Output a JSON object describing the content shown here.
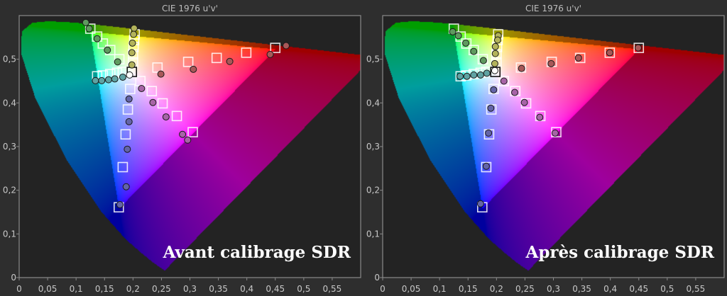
{
  "chart_data": [
    {
      "type": "scatter",
      "title": "CIE 1976 u'v'",
      "caption": "Avant calibrage SDR",
      "xlim": [
        0,
        0.6
      ],
      "ylim": [
        0,
        0.6
      ],
      "xticks": [
        "0",
        "0,05",
        "0,1",
        "0,15",
        "0,2",
        "0,25",
        "0,3",
        "0,35",
        "0,4",
        "0,45",
        "0,5",
        "0,55"
      ],
      "xtick_values": [
        0,
        0.05,
        0.1,
        0.15,
        0.2,
        0.25,
        0.3,
        0.35,
        0.4,
        0.45,
        0.5,
        0.55
      ],
      "yticks": [
        "0",
        "0,1",
        "0,2",
        "0,3",
        "0,4",
        "0,5"
      ],
      "ytick_values": [
        0,
        0.1,
        0.2,
        0.3,
        0.4,
        0.5
      ],
      "targets": {
        "green": [
          [
            0.125,
            0.57
          ],
          [
            0.137,
            0.552
          ],
          [
            0.147,
            0.536
          ],
          [
            0.16,
            0.521
          ],
          [
            0.176,
            0.5
          ]
        ],
        "yellow": [
          [
            0.203,
            0.557
          ],
          [
            0.202,
            0.544
          ],
          [
            0.201,
            0.528
          ],
          [
            0.2,
            0.511
          ],
          [
            0.2,
            0.493
          ]
        ],
        "cyan": [
          [
            0.137,
            0.461
          ],
          [
            0.147,
            0.463
          ],
          [
            0.16,
            0.466
          ],
          [
            0.172,
            0.469
          ],
          [
            0.182,
            0.471
          ]
        ],
        "red": [
          [
            0.45,
            0.526
          ],
          [
            0.399,
            0.515
          ],
          [
            0.347,
            0.503
          ],
          [
            0.297,
            0.494
          ],
          [
            0.243,
            0.481
          ]
        ],
        "magenta": [
          [
            0.305,
            0.333
          ],
          [
            0.277,
            0.37
          ],
          [
            0.252,
            0.399
          ],
          [
            0.233,
            0.427
          ],
          [
            0.213,
            0.45
          ]
        ],
        "blue": [
          [
            0.175,
            0.161
          ],
          [
            0.182,
            0.253
          ],
          [
            0.187,
            0.328
          ],
          [
            0.191,
            0.385
          ],
          [
            0.195,
            0.432
          ]
        ],
        "white": [
          [
            0.198,
            0.471
          ]
        ]
      },
      "measured": {
        "green": [
          [
            0.117,
            0.584
          ],
          [
            0.123,
            0.57
          ],
          [
            0.137,
            0.547
          ],
          [
            0.155,
            0.521
          ],
          [
            0.173,
            0.494
          ]
        ],
        "yellow": [
          [
            0.202,
            0.571
          ],
          [
            0.201,
            0.557
          ],
          [
            0.199,
            0.537
          ],
          [
            0.198,
            0.515
          ],
          [
            0.198,
            0.487
          ]
        ],
        "cyan": [
          [
            0.134,
            0.451
          ],
          [
            0.145,
            0.451
          ],
          [
            0.157,
            0.453
          ],
          [
            0.168,
            0.455
          ],
          [
            0.182,
            0.459
          ]
        ],
        "red": [
          [
            0.469,
            0.531
          ],
          [
            0.441,
            0.511
          ],
          [
            0.37,
            0.495
          ],
          [
            0.306,
            0.477
          ],
          [
            0.249,
            0.466
          ]
        ],
        "magenta": [
          [
            0.296,
            0.315
          ],
          [
            0.287,
            0.328
          ],
          [
            0.258,
            0.368
          ],
          [
            0.235,
            0.401
          ],
          [
            0.215,
            0.433
          ]
        ],
        "blue": [
          [
            0.177,
            0.167
          ],
          [
            0.188,
            0.208
          ],
          [
            0.19,
            0.294
          ],
          [
            0.193,
            0.357
          ],
          [
            0.193,
            0.409
          ]
        ],
        "white": [
          [
            0.194,
            0.464
          ]
        ]
      }
    },
    {
      "type": "scatter",
      "title": "CIE 1976 u'v'",
      "caption": "Après calibrage SDR",
      "xlim": [
        0,
        0.6
      ],
      "ylim": [
        0,
        0.6
      ],
      "xticks": [
        "0",
        "0,05",
        "0,1",
        "0,15",
        "0,2",
        "0,25",
        "0,3",
        "0,35",
        "0,4",
        "0,45",
        "0,5",
        "0,55"
      ],
      "xtick_values": [
        0,
        0.05,
        0.1,
        0.15,
        0.2,
        0.25,
        0.3,
        0.35,
        0.4,
        0.45,
        0.5,
        0.55
      ],
      "yticks": [
        "0",
        "0,1",
        "0,2",
        "0,3",
        "0,4",
        "0,5"
      ],
      "ytick_values": [
        0,
        0.1,
        0.2,
        0.3,
        0.4,
        0.5
      ],
      "targets": {
        "green": [
          [
            0.125,
            0.57
          ],
          [
            0.137,
            0.552
          ],
          [
            0.147,
            0.536
          ],
          [
            0.16,
            0.521
          ],
          [
            0.176,
            0.5
          ]
        ],
        "yellow": [
          [
            0.203,
            0.557
          ],
          [
            0.202,
            0.544
          ],
          [
            0.201,
            0.528
          ],
          [
            0.2,
            0.511
          ],
          [
            0.2,
            0.493
          ]
        ],
        "cyan": [
          [
            0.137,
            0.461
          ],
          [
            0.147,
            0.463
          ],
          [
            0.16,
            0.466
          ],
          [
            0.172,
            0.469
          ],
          [
            0.182,
            0.471
          ]
        ],
        "red": [
          [
            0.45,
            0.526
          ],
          [
            0.399,
            0.515
          ],
          [
            0.347,
            0.503
          ],
          [
            0.297,
            0.494
          ],
          [
            0.243,
            0.481
          ]
        ],
        "magenta": [
          [
            0.305,
            0.333
          ],
          [
            0.277,
            0.37
          ],
          [
            0.252,
            0.399
          ],
          [
            0.233,
            0.427
          ],
          [
            0.213,
            0.45
          ]
        ],
        "blue": [
          [
            0.175,
            0.161
          ],
          [
            0.182,
            0.253
          ],
          [
            0.187,
            0.328
          ],
          [
            0.191,
            0.385
          ],
          [
            0.195,
            0.432
          ]
        ],
        "white": [
          [
            0.198,
            0.471
          ]
        ]
      },
      "measured": {
        "green": [
          [
            0.123,
            0.563
          ],
          [
            0.133,
            0.554
          ],
          [
            0.146,
            0.537
          ],
          [
            0.16,
            0.518
          ],
          [
            0.177,
            0.497
          ]
        ],
        "yellow": [
          [
            0.203,
            0.554
          ],
          [
            0.202,
            0.544
          ],
          [
            0.198,
            0.529
          ],
          [
            0.198,
            0.513
          ],
          [
            0.197,
            0.49
          ]
        ],
        "cyan": [
          [
            0.136,
            0.461
          ],
          [
            0.148,
            0.461
          ],
          [
            0.16,
            0.464
          ],
          [
            0.172,
            0.464
          ],
          [
            0.183,
            0.468
          ]
        ],
        "red": [
          [
            0.449,
            0.526
          ],
          [
            0.399,
            0.515
          ],
          [
            0.344,
            0.503
          ],
          [
            0.296,
            0.49
          ],
          [
            0.244,
            0.479
          ]
        ],
        "magenta": [
          [
            0.303,
            0.331
          ],
          [
            0.276,
            0.367
          ],
          [
            0.249,
            0.401
          ],
          [
            0.232,
            0.424
          ],
          [
            0.213,
            0.45
          ]
        ],
        "blue": [
          [
            0.172,
            0.169
          ],
          [
            0.182,
            0.255
          ],
          [
            0.186,
            0.331
          ],
          [
            0.19,
            0.388
          ],
          [
            0.195,
            0.43
          ]
        ],
        "white": [
          [
            0.197,
            0.474
          ]
        ]
      }
    }
  ],
  "series_colors": {
    "green": "#5f9a5f",
    "yellow": "#b3b35a",
    "cyan": "#5fa3a3",
    "red": "#a85858",
    "magenta": "#a764a7",
    "blue": "#6464a8",
    "white": "#ffffff"
  },
  "colors": {
    "background": "#2e2e2e",
    "plot_bg": "#232323",
    "frame": "#8a8a8a"
  }
}
